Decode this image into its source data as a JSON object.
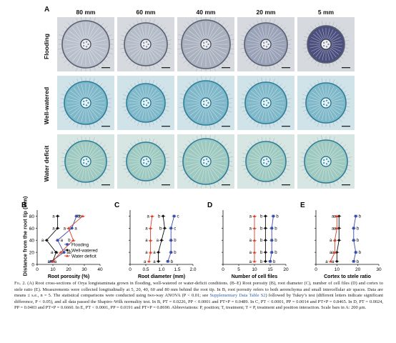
{
  "panel_a": {
    "letter": "A",
    "columns": [
      "80 mm",
      "60 mm",
      "40 mm",
      "20 mm",
      "5 mm"
    ],
    "rows": [
      "Flooding",
      "Well-watered",
      "Water deficit"
    ]
  },
  "y_axis_label": "Distance from the root tip (mm)",
  "chart_data": [
    {
      "letter": "B",
      "type": "line",
      "xlabel": "Root porosity (%)",
      "xlim": [
        0,
        40
      ],
      "xticks": [
        0,
        10,
        20,
        30,
        40
      ],
      "ylim": [
        0,
        90
      ],
      "yticks": [
        0,
        20,
        40,
        60,
        80
      ],
      "legend": {
        "placement": "bottom-right",
        "entries": [
          "Flooding",
          "Well-watered",
          "Water deficit"
        ]
      },
      "y": [
        5,
        20,
        40,
        60,
        80
      ],
      "series": [
        {
          "name": "Flooding",
          "x": [
            9,
            17,
            13,
            22,
            25
          ],
          "letters": [
            "a",
            "ab",
            "a",
            "a",
            "b"
          ]
        },
        {
          "name": "Well-watered",
          "x": [
            10,
            12,
            6,
            13,
            13
          ],
          "letters": [
            "a",
            "a",
            "a",
            "a",
            "a"
          ]
        },
        {
          "name": "Water deficit",
          "x": [
            10,
            15,
            23,
            20,
            29
          ],
          "letters": [
            "a",
            "a",
            "b",
            "a",
            "b"
          ]
        }
      ]
    },
    {
      "letter": "C",
      "type": "line",
      "xlabel": "Root diameter (mm)",
      "xlim": [
        0,
        2.0
      ],
      "xticks": [
        "0",
        "0.5",
        "1.0",
        "1.5",
        "2.0"
      ],
      "ylim": [
        0,
        90
      ],
      "y": [
        5,
        20,
        40,
        60,
        80
      ],
      "series": [
        {
          "name": "Flooding",
          "x": [
            1.2,
            1.3,
            1.3,
            1.3,
            1.4
          ],
          "letters": [
            "b",
            "b",
            "b",
            "c",
            "c"
          ]
        },
        {
          "name": "Well-watered",
          "x": [
            0.9,
            0.9,
            1.0,
            1.1,
            1.05
          ],
          "letters": [
            "a",
            "a",
            "a",
            "b",
            "b"
          ]
        },
        {
          "name": "Water deficit",
          "x": [
            0.6,
            0.65,
            0.65,
            0.65,
            0.7
          ],
          "letters": [
            "a",
            "a",
            "a",
            "a",
            "a"
          ]
        }
      ]
    },
    {
      "letter": "D",
      "type": "line",
      "xlabel": "Number of cell files",
      "xlim": [
        0,
        20
      ],
      "xticks": [
        0,
        5,
        10,
        15,
        20
      ],
      "ylim": [
        0,
        90
      ],
      "y": [
        5,
        20,
        40,
        60,
        80
      ],
      "series": [
        {
          "name": "Flooding",
          "x": [
            15,
            15.5,
            15.5,
            15.5,
            16
          ],
          "letters": [
            "b",
            "b",
            "b",
            "b",
            "b"
          ]
        },
        {
          "name": "Well-watered",
          "x": [
            13.5,
            13.5,
            13.5,
            13.5,
            13.5
          ],
          "letters": [
            "b",
            "b",
            "b",
            "b",
            "b"
          ]
        },
        {
          "name": "Water deficit",
          "x": [
            10,
            10,
            10,
            10,
            10
          ],
          "letters": [
            "a",
            "a",
            "a",
            "a",
            "a"
          ]
        }
      ]
    },
    {
      "letter": "E",
      "type": "line",
      "xlabel": "Cortex to stele ratio",
      "xlim": [
        0,
        30
      ],
      "xticks": [
        0,
        10,
        20,
        30
      ],
      "ylim": [
        0,
        90
      ],
      "y": [
        5,
        20,
        40,
        60,
        80
      ],
      "series": [
        {
          "name": "Flooding",
          "x": [
            18,
            19,
            18,
            18,
            19
          ],
          "letters": [
            "b",
            "b",
            "b",
            "b",
            "b"
          ]
        },
        {
          "name": "Well-watered",
          "x": [
            10,
            10,
            11,
            11,
            11
          ],
          "letters": [
            "a",
            "a",
            "a",
            "a",
            "a"
          ]
        },
        {
          "name": "Water deficit",
          "x": [
            7,
            9,
            9,
            10,
            10
          ],
          "letters": [
            "a",
            "a",
            "a",
            "a",
            "a"
          ]
        }
      ]
    }
  ],
  "caption": {
    "lead": "Fig. 2.",
    "text1": " (A) Root cross-sections of Orya longistaminata grown in flooding, well-watered or water-deficit conditions. (B–E) Root porosity (B), root diameter (C), number of cell files (D) and cortex to stele ratio (E). Measurements were collected longitudinally at 5, 20, 40, 60 and 80 mm behind the root tip. In B, root porosity refers to both aerenchyma and small intercellular air spaces. Data are means ± s.e., n = 5. The statistical comparisons were conducted using two-way ANOVA (P < 0.01; see ",
    "link": "Supplementary Data Table S2",
    "text2": ") followed by Tukey’s test (different letters indicate significant difference, P < 0.05), and all data passed the Shapiro–Wilk normality test. In B, PT = 0.0226, PP < 0.0001 and PT×P = 0.0489. In C, PT < 0.0001, PP = 0.0014 and PT×P = 0.8465. In D, PT = 0.0024, PP = 0.0403 and PT×P = 0.6660. In E, PT < 0.0001, PP = 0.0191 and PT×P = 0.8690. Abbreviations: P, position; T, treatment; T × P, treatment and position interaction. Scale bars in A: 200 μm."
  },
  "colors": {
    "flooding": "#3a4fa8",
    "well_watered": "#111111",
    "water_deficit": "#d9402b",
    "flood_tissue": "#c9cfd8",
    "well_tissue": "#7fb8c9",
    "deficit_tissue": "#9ec9c0"
  }
}
